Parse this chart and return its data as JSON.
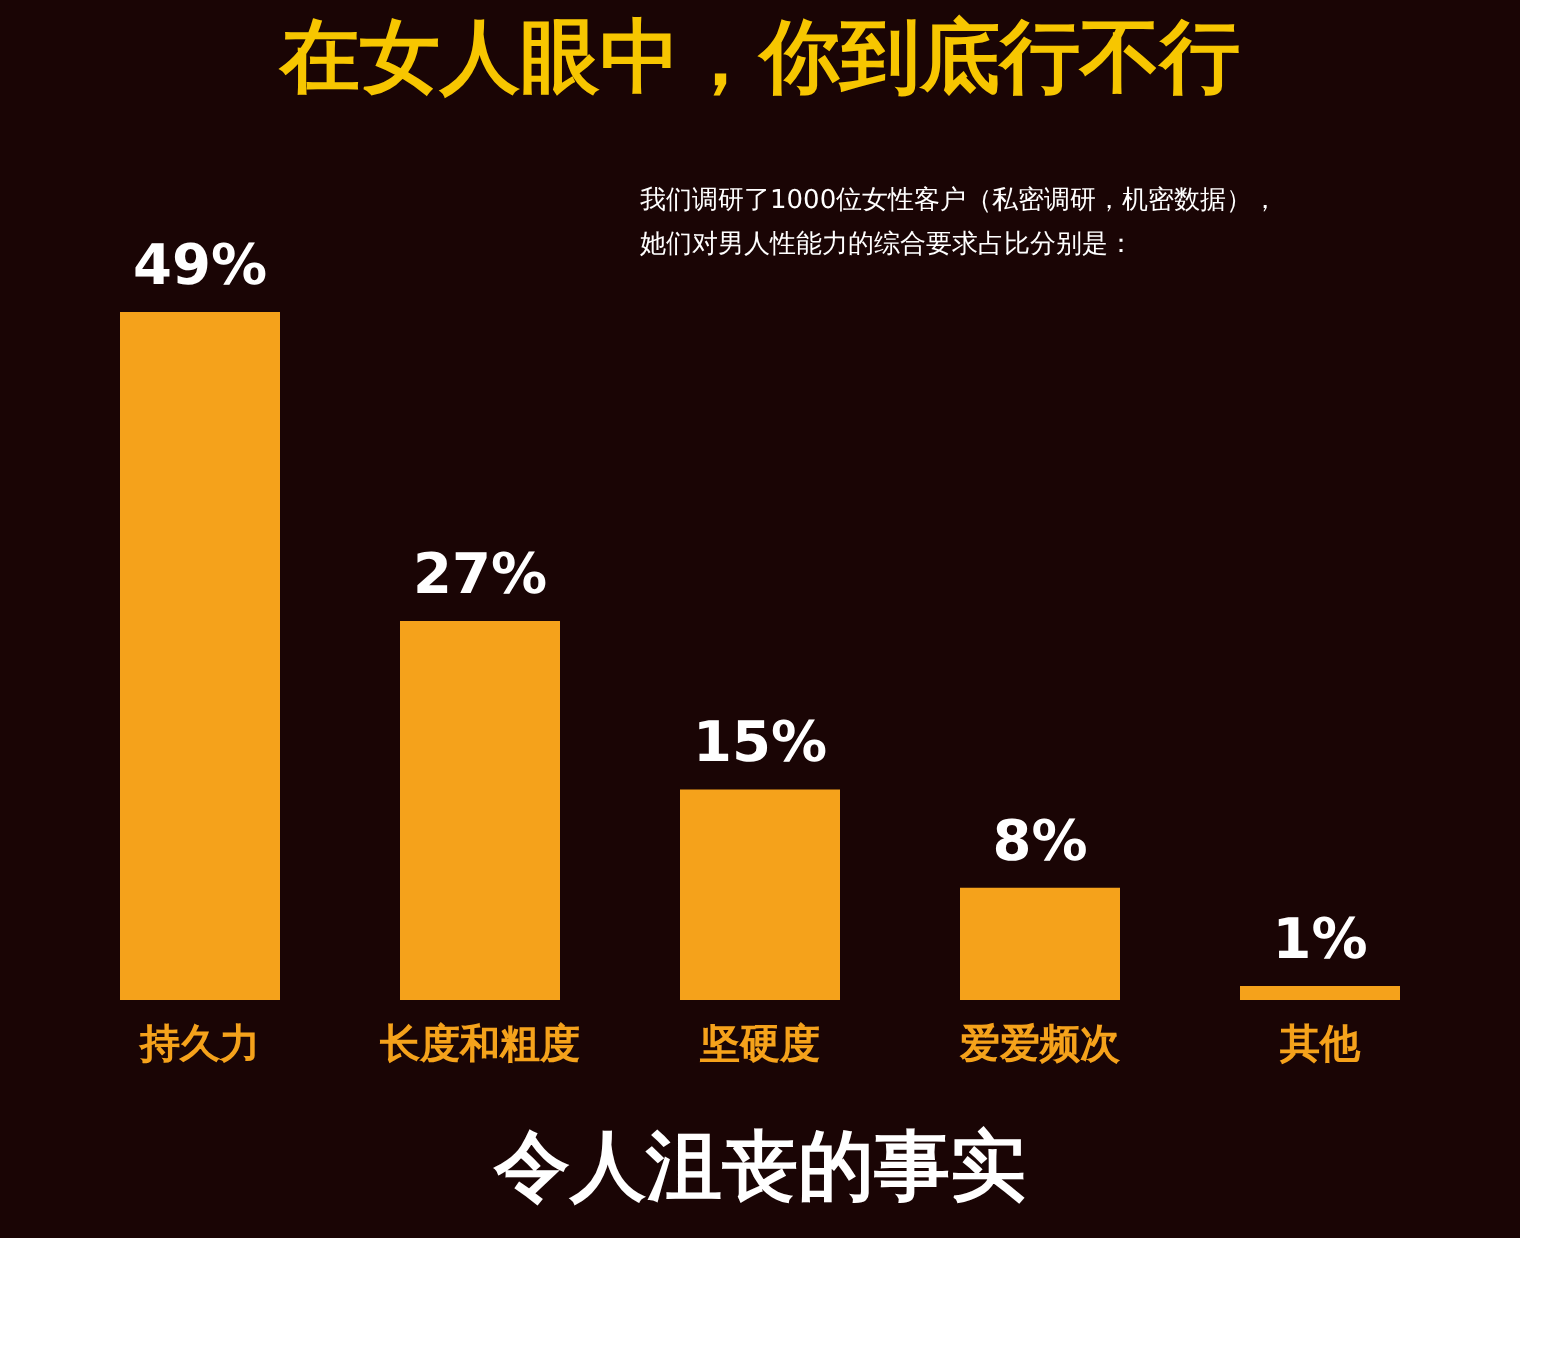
{
  "chart_data": {
    "type": "bar",
    "title": "在女人眼中，你到底行不行",
    "categories": [
      "持久力",
      "长度和粗度",
      "坚硬度",
      "爱爱频次",
      "其他"
    ],
    "values": [
      49,
      27,
      15,
      8,
      1
    ],
    "value_labels": [
      "49%",
      "27%",
      "15%",
      "8%",
      "1%"
    ],
    "color": "#f5a21b",
    "annotations": [
      "我们调研了1000位女性客户（私密调研，机密数据），",
      "她们对男人性能力的综合要求占比分别是：",
      "令人沮丧的事实"
    ]
  }
}
